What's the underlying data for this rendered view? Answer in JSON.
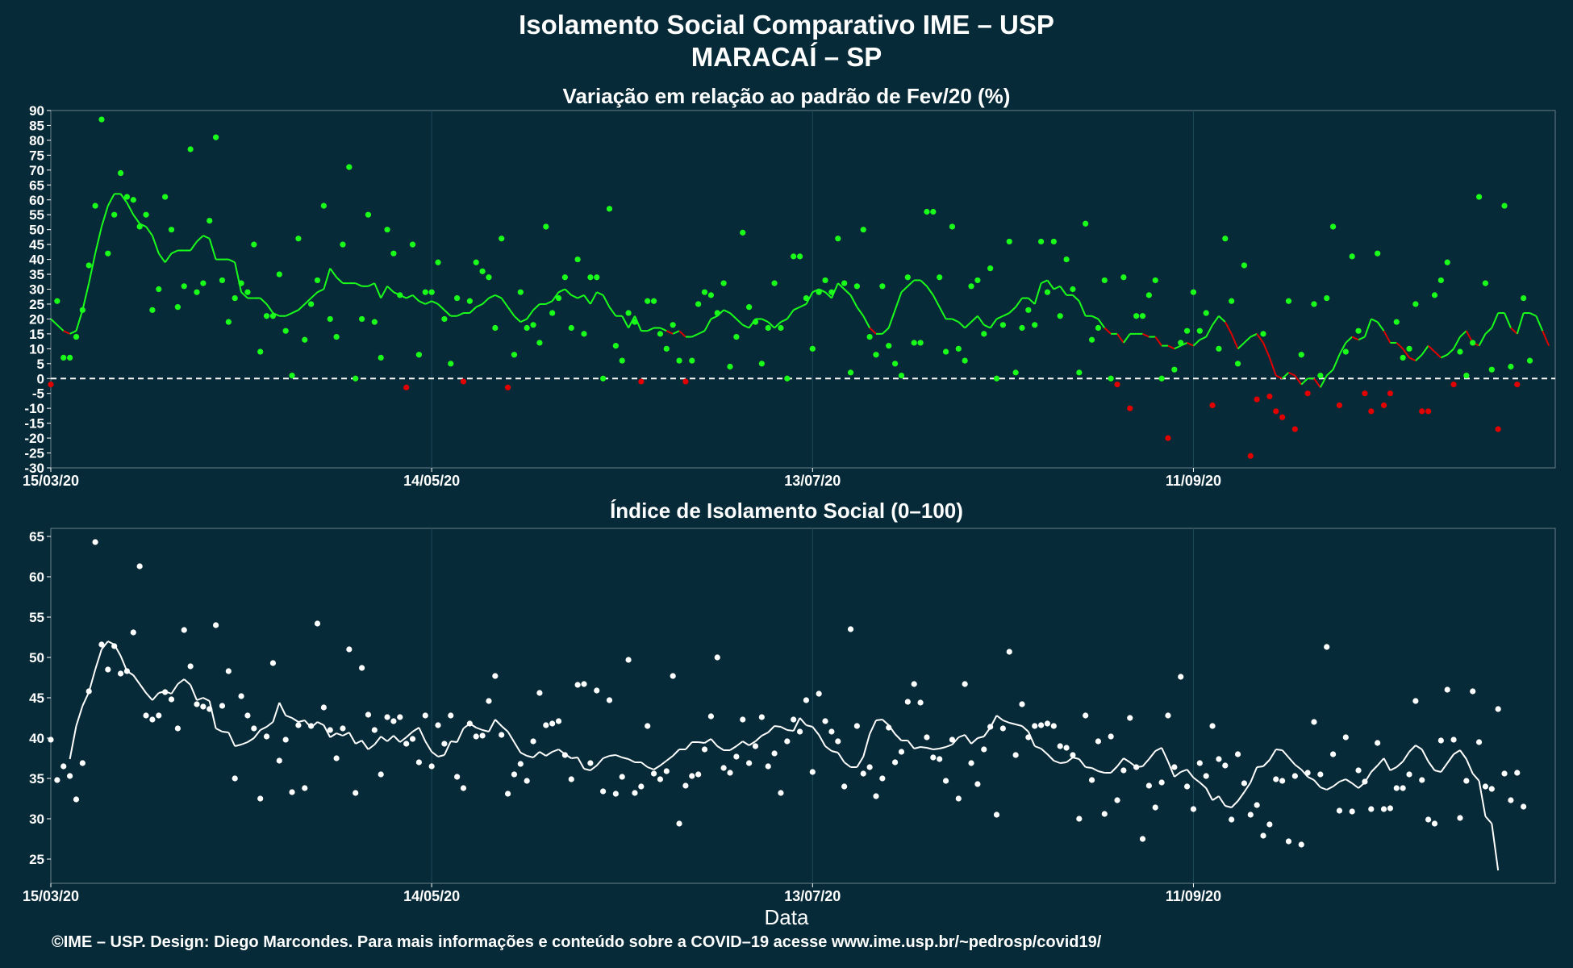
{
  "header": {
    "title_line1": "Isolamento Social Comparativo IME – USP",
    "title_line2": "MARACAÍ – SP"
  },
  "xlabel": "Data",
  "footer": "©IME – USP. Design: Diego Marcondes. Para mais informações e conteúdo sobre a COVID–19 acesse www.ime.usp.br/~pedrosp/covid19/",
  "colors": {
    "background": "#062a38",
    "panel_background": "#062a38",
    "grid": "#1e4a5a",
    "positive": "#1aff1a",
    "negative": "#e00000",
    "index_series": "#ffffff"
  },
  "chart_data": [
    {
      "type": "scatter",
      "title": "Variação em relação ao padrão de Fev/20 (%)",
      "xlabel": "Data",
      "ylabel": "",
      "x_start": "15/03/20",
      "x_ticks": [
        "15/03/20",
        "14/05/20",
        "13/07/20",
        "11/09/20"
      ],
      "x_tick_days": [
        0,
        60,
        120,
        180
      ],
      "xlim_days": [
        0,
        237
      ],
      "ylim": [
        -30,
        90
      ],
      "y_ticks": [
        -30,
        -25,
        -20,
        -15,
        -10,
        -5,
        0,
        5,
        10,
        15,
        20,
        25,
        30,
        35,
        40,
        45,
        50,
        55,
        60,
        65,
        70,
        75,
        80,
        85,
        90
      ],
      "reference_line": 0,
      "grid": true,
      "points": [
        -2,
        26,
        7,
        7,
        14,
        23,
        38,
        58,
        87,
        42,
        55,
        69,
        61,
        60,
        51,
        55,
        23,
        30,
        61,
        50,
        24,
        31,
        77,
        29,
        32,
        53,
        81,
        33,
        19,
        27,
        32,
        29,
        45,
        9,
        21,
        21,
        35,
        16,
        1,
        47,
        13,
        25,
        33,
        58,
        20,
        14,
        45,
        71,
        0,
        20,
        55,
        19,
        7,
        50,
        42,
        28,
        -3,
        45,
        8,
        29,
        29,
        39,
        20,
        5,
        27,
        -1,
        26,
        39,
        36,
        34,
        17,
        47,
        -3,
        8,
        29,
        17,
        18,
        12,
        51,
        22,
        27,
        34,
        17,
        40,
        15,
        34,
        34,
        0,
        57,
        11,
        6,
        22,
        19,
        -1,
        26,
        26,
        15,
        10,
        18,
        6,
        -1,
        6,
        25,
        29,
        28,
        22,
        32,
        4,
        14,
        49,
        24,
        19,
        5,
        17,
        32,
        17,
        0,
        41,
        41,
        27,
        10,
        29,
        33,
        29,
        47,
        32,
        2,
        31,
        50,
        14,
        8,
        31,
        11,
        5,
        1,
        34,
        12,
        12,
        56,
        56,
        34,
        9,
        51,
        10,
        6,
        31,
        33,
        15,
        37,
        0,
        18,
        46,
        2,
        17,
        23,
        18,
        46,
        29,
        46,
        21,
        40,
        30,
        2,
        52,
        13,
        17,
        33,
        0,
        -2,
        34,
        -10,
        21,
        21,
        28,
        33,
        0,
        -20,
        3,
        12,
        16,
        29,
        16,
        22,
        -9,
        10,
        47,
        26,
        5,
        38,
        -26,
        -7,
        15,
        -6,
        -11,
        -13,
        26,
        -17,
        8,
        -5,
        25,
        1,
        27,
        51,
        -9,
        9,
        41,
        16,
        -5,
        -11,
        42,
        -9,
        -5,
        19,
        7,
        10,
        25,
        -11,
        -11,
        28,
        33,
        39,
        -2,
        9,
        1,
        12,
        61,
        32,
        3,
        -17,
        58,
        4,
        -2,
        27,
        6
      ],
      "moving_average": [
        20,
        18,
        16,
        15,
        16,
        23,
        32,
        42,
        51,
        58,
        62,
        62,
        59,
        55,
        52,
        51,
        48,
        42,
        39,
        42,
        43,
        43,
        43,
        46,
        48,
        47,
        40,
        40,
        40,
        39,
        29,
        27,
        27,
        27,
        25,
        22,
        21,
        21,
        22,
        23,
        25,
        27,
        29,
        30,
        37,
        34,
        32,
        32,
        32,
        31,
        31,
        32,
        27,
        31,
        29,
        28,
        27,
        28,
        26,
        25,
        26,
        25,
        23,
        21,
        21,
        22,
        22,
        24,
        25,
        27,
        28,
        27,
        24,
        21,
        19,
        20,
        23,
        25,
        25,
        26,
        29,
        30,
        28,
        27,
        28,
        25,
        29,
        28,
        24,
        21,
        21,
        17,
        21,
        16,
        16,
        17,
        17,
        16,
        15,
        16,
        14,
        14,
        15,
        16,
        20,
        21,
        23,
        22,
        20,
        18,
        17,
        20,
        20,
        19,
        17,
        19,
        20,
        23,
        24,
        25,
        29,
        30,
        29,
        27,
        32,
        30,
        28,
        24,
        21,
        17,
        15,
        15,
        17,
        23,
        29,
        31,
        33,
        33,
        31,
        28,
        24,
        20,
        20,
        19,
        17,
        19,
        21,
        18,
        17,
        20,
        21,
        22,
        24,
        27,
        27,
        25,
        32,
        33,
        30,
        31,
        28,
        28,
        26,
        21,
        21,
        20,
        17,
        15,
        15,
        12,
        15,
        15,
        15,
        14,
        14,
        11,
        11,
        10,
        11,
        12,
        11,
        13,
        14,
        18,
        21,
        19,
        15,
        10,
        12,
        14,
        15,
        12,
        7,
        1,
        0,
        2,
        1,
        -2,
        0,
        0,
        -3,
        1,
        3,
        8,
        12,
        14,
        13,
        14,
        20,
        19,
        16,
        12,
        12,
        10,
        7,
        6,
        8,
        11,
        9,
        7,
        8,
        10,
        14,
        16,
        12,
        11,
        15,
        17,
        22,
        22,
        17,
        15,
        22,
        22,
        21,
        16,
        11
      ]
    },
    {
      "type": "scatter",
      "title": "Índice de Isolamento Social (0–100)",
      "xlabel": "Data",
      "ylabel": "",
      "x_start": "15/03/20",
      "x_ticks": [
        "15/03/20",
        "14/05/20",
        "13/07/20",
        "11/09/20"
      ],
      "x_tick_days": [
        0,
        60,
        120,
        180
      ],
      "xlim_days": [
        0,
        237
      ],
      "ylim": [
        22,
        66
      ],
      "y_ticks": [
        25,
        30,
        35,
        40,
        45,
        50,
        55,
        60,
        65
      ],
      "grid": true,
      "points": [
        39.8,
        34.8,
        36.5,
        35.3,
        32.4,
        36.9,
        45.8,
        64.3,
        51.6,
        48.5,
        51.4,
        48.0,
        48.3,
        53.1,
        61.3,
        42.8,
        42.3,
        42.8,
        45.7,
        44.8,
        41.2,
        53.4,
        48.9,
        44.2,
        43.9,
        43.6,
        54.0,
        44.0,
        48.3,
        35.0,
        45.2,
        42.8,
        41.2,
        32.5,
        40.2,
        49.3,
        37.2,
        39.8,
        33.3,
        41.6,
        33.8,
        41.5,
        54.2,
        43.8,
        41.0,
        37.5,
        41.2,
        51.0,
        33.2,
        48.7,
        42.9,
        41.0,
        35.5,
        42.6,
        42.1,
        42.6,
        39.3,
        39.9,
        37.0,
        42.8,
        36.5,
        41.6,
        39.3,
        42.8,
        35.2,
        33.8,
        41.8,
        40.2,
        40.3,
        44.6,
        47.7,
        40.4,
        33.1,
        35.5,
        36.8,
        34.7,
        39.6,
        45.6,
        41.6,
        41.8,
        42.1,
        37.9,
        34.9,
        46.6,
        46.7,
        36.9,
        45.9,
        33.4,
        44.7,
        33.1,
        35.2,
        49.7,
        33.2,
        34.0,
        41.5,
        35.6,
        34.9,
        35.9,
        47.7,
        29.4,
        34.1,
        35.3,
        35.5,
        38.6,
        42.7,
        50.0,
        36.3,
        35.7,
        37.7,
        42.3,
        36.9,
        39.0,
        42.6,
        36.5,
        38.1,
        33.2,
        39.6,
        42.3,
        40.8,
        44.7,
        35.8,
        45.5,
        42.1,
        40.8,
        39.6,
        34.0,
        53.5,
        41.5,
        35.6,
        36.4,
        32.8,
        35.0,
        41.3,
        37.0,
        38.3,
        44.5,
        46.7,
        44.4,
        40.1,
        37.6,
        37.4,
        34.7,
        39.8,
        32.5,
        46.7,
        36.9,
        34.3,
        38.6,
        41.4,
        30.5,
        41.2,
        50.7,
        37.9,
        44.2,
        40.1,
        41.5,
        41.6,
        41.8,
        41.5,
        39.0,
        38.8,
        37.9,
        30.0,
        42.8,
        34.8,
        39.6,
        30.6,
        40.2,
        32.3,
        36.0,
        42.5,
        36.4,
        27.5,
        34.1,
        31.4,
        34.5,
        42.8,
        36.4,
        47.6,
        34.0,
        31.2,
        36.9,
        35.3,
        41.5,
        37.4,
        36.6,
        29.9,
        38.0,
        34.4,
        30.5,
        31.7,
        27.9,
        29.3,
        34.9,
        34.7,
        27.2,
        35.3,
        26.8,
        35.7,
        42.0,
        35.5,
        51.3,
        38.0,
        31.0,
        40.1,
        30.9,
        36.0,
        34.6,
        31.2,
        39.4,
        31.2,
        31.3,
        33.8,
        33.8,
        35.5,
        44.6,
        34.8,
        29.9,
        29.4,
        39.7,
        46.0,
        39.8,
        30.1,
        34.7,
        45.8,
        39.5,
        34.0,
        33.7,
        43.6,
        35.6,
        32.3,
        35.7,
        31.5
      ],
      "moving_average": [
        null,
        null,
        null,
        37.4,
        41.5,
        44.0,
        45.7,
        48.5,
        51.0,
        52.0,
        51.6,
        50.2,
        48.3,
        47.8,
        46.7,
        45.6,
        44.7,
        45.6,
        45.8,
        45.5,
        46.7,
        47.3,
        46.6,
        44.7,
        45.0,
        44.6,
        41.2,
        40.8,
        40.7,
        39.0,
        39.2,
        39.5,
        40.0,
        41.0,
        41.4,
        42.0,
        44.4,
        42.8,
        42.5,
        42.0,
        42.2,
        41.3,
        42.0,
        41.6,
        40.1,
        40.6,
        40.3,
        40.7,
        39.3,
        39.7,
        38.6,
        39.2,
        40.2,
        39.6,
        40.3,
        39.5,
        40.1,
        40.8,
        41.3,
        39.6,
        38.3,
        37.7,
        37.9,
        39.6,
        39.5,
        41.2,
        41.8,
        41.3,
        41.0,
        40.8,
        42.3,
        41.5,
        40.8,
        39.5,
        38.2,
        37.8,
        37.6,
        38.3,
        37.8,
        38.3,
        38.6,
        38.0,
        37.5,
        37.6,
        36.2,
        36.0,
        36.6,
        37.5,
        37.8,
        37.9,
        37.6,
        37.4,
        37.0,
        37.0,
        36.4,
        36.1,
        36.6,
        37.2,
        37.8,
        38.6,
        38.6,
        39.5,
        39.5,
        39.4,
        39.9,
        39.0,
        38.5,
        38.5,
        39.0,
        39.6,
        39.1,
        39.6,
        40.3,
        40.7,
        41.5,
        41.4,
        41.0,
        40.9,
        42.5,
        41.6,
        41.4,
        40.4,
        39.0,
        38.4,
        38.2,
        37.0,
        36.4,
        36.4,
        37.7,
        40.5,
        42.2,
        42.3,
        41.6,
        40.5,
        39.7,
        39.7,
        38.7,
        38.9,
        38.8,
        38.6,
        38.7,
        38.9,
        39.2,
        40.1,
        40.4,
        39.3,
        40.0,
        40.2,
        41.3,
        42.8,
        42.2,
        41.9,
        41.7,
        41.5,
        40.8,
        39.0,
        38.7,
        38.0,
        37.2,
        36.9,
        37.0,
        37.6,
        37.4,
        36.4,
        36.3,
        35.9,
        35.7,
        35.7,
        36.5,
        37.5,
        37.0,
        36.4,
        36.5,
        37.4,
        38.4,
        38.8,
        37.1,
        35.2,
        35.8,
        36.1,
        35.1,
        34.5,
        33.8,
        32.3,
        32.8,
        31.6,
        31.4,
        32.2,
        33.3,
        34.5,
        36.4,
        36.5,
        37.3,
        38.6,
        38.5,
        37.6,
        36.7,
        36.1,
        35.2,
        34.8,
        33.9,
        33.6,
        34.0,
        34.6,
        34.9,
        34.4,
        33.8,
        34.5,
        35.8,
        36.6,
        37.5,
        36.0,
        36.4,
        37.1,
        38.3,
        39.1,
        38.6,
        37.1,
        36.0,
        35.8,
        36.9,
        38.0,
        38.5,
        37.4,
        35.6,
        34.7,
        30.3,
        29.4,
        23.6
      ]
    }
  ]
}
